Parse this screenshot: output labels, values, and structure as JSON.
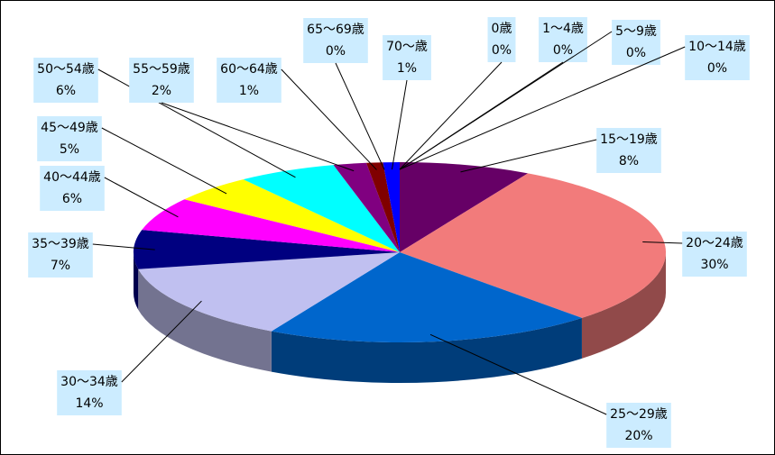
{
  "chart_data": {
    "type": "pie3d",
    "categories": [
      "0歳",
      "1～4歳",
      "5～9歳",
      "10～14歳",
      "15～19歳",
      "20～24歳",
      "25～29歳",
      "30～34歳",
      "35～39歳",
      "40～44歳",
      "45～49歳",
      "50～54歳",
      "55～59歳",
      "60～64歳",
      "65～69歳",
      "70～歳"
    ],
    "values": [
      0,
      0,
      0,
      0,
      8,
      30,
      20,
      14,
      7,
      6,
      5,
      6,
      2,
      1,
      0,
      1
    ],
    "value_labels": [
      "0%",
      "0%",
      "0%",
      "0%",
      "8%",
      "30%",
      "20%",
      "14%",
      "7%",
      "6%",
      "5%",
      "6%",
      "2%",
      "1%",
      "0%",
      "1%"
    ],
    "colors": [
      "#993366",
      "#ff8080",
      "#3366ff",
      "#33cccc",
      "#660066",
      "#f27b7b",
      "#0066cc",
      "#c0c0f0",
      "#000080",
      "#ff00ff",
      "#ffff00",
      "#00ffff",
      "#800080",
      "#800000",
      "#008080",
      "#0000ff"
    ]
  }
}
